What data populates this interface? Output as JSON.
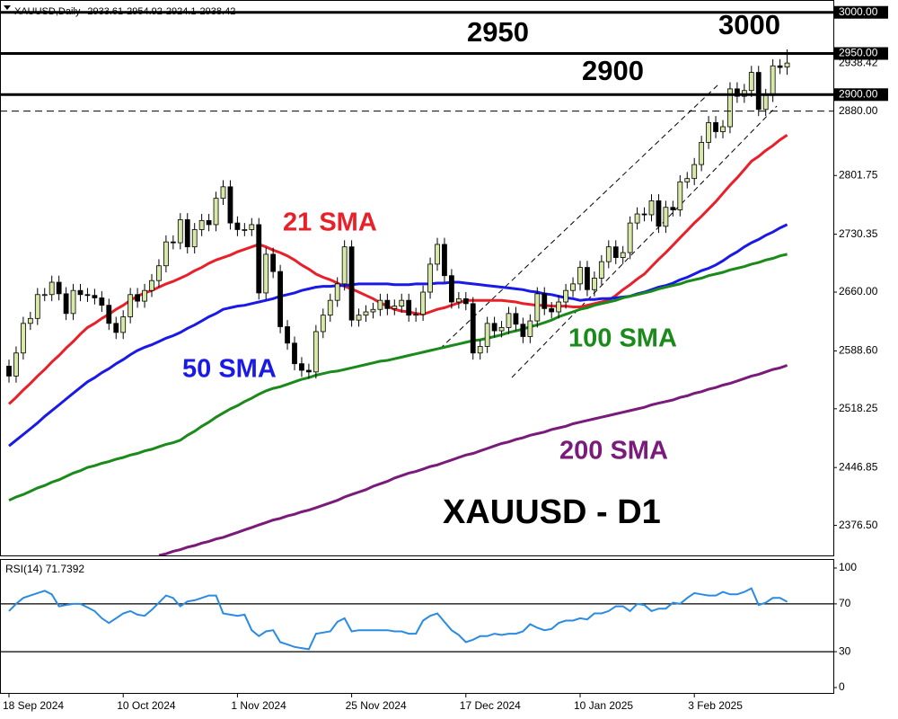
{
  "chart_data": {
    "type": "candlestick",
    "symbol": "XAUUSD,Daily",
    "annotation": "XAUUSD - D1",
    "categories": [
      "18 Sep 2024",
      null,
      null,
      null,
      null,
      null,
      null,
      null,
      null,
      null,
      null,
      null,
      null,
      null,
      null,
      null,
      "10 Oct 2024",
      null,
      null,
      null,
      null,
      null,
      null,
      null,
      null,
      null,
      null,
      null,
      null,
      null,
      null,
      null,
      "1 Nov 2024",
      null,
      null,
      null,
      null,
      null,
      null,
      null,
      null,
      null,
      null,
      null,
      null,
      null,
      null,
      null,
      "25 Nov 2024",
      null,
      null,
      null,
      null,
      null,
      null,
      null,
      null,
      null,
      null,
      null,
      null,
      null,
      null,
      null,
      "17 Dec 2024",
      null,
      null,
      null,
      null,
      null,
      null,
      null,
      null,
      null,
      null,
      null,
      null,
      null,
      null,
      null,
      "10 Jan 2025",
      null,
      null,
      null,
      null,
      null,
      null,
      null,
      null,
      null,
      null,
      null,
      null,
      null,
      null,
      null,
      "3 Feb 2025",
      null,
      null,
      null,
      null,
      null,
      null,
      null,
      null,
      null,
      null,
      null,
      null,
      null
    ],
    "open": [
      2570,
      2558,
      2586,
      2622,
      2628,
      2657,
      2657,
      2672,
      2658,
      2634,
      2662,
      2657,
      2656,
      2653,
      2644,
      2622,
      2611,
      2630,
      2657,
      2649,
      2662,
      2674,
      2692,
      2721,
      2720,
      2748,
      2715,
      2736,
      2747,
      2742,
      2774,
      2788,
      2744,
      2736,
      2736,
      2742,
      2659,
      2706,
      2685,
      2618,
      2598,
      2573,
      2565,
      2563,
      2612,
      2632,
      2650,
      2670,
      2715,
      2626,
      2632,
      2636,
      2639,
      2650,
      2640,
      2643,
      2650,
      2632,
      2633,
      2660,
      2694,
      2718,
      2680,
      2648,
      2652,
      2646,
      2586,
      2594,
      2622,
      2613,
      2617,
      2634,
      2621,
      2606,
      2625,
      2658,
      2640,
      2636,
      2648,
      2662,
      2670,
      2690,
      2663,
      2677,
      2697,
      2715,
      2702,
      2708,
      2744,
      2755,
      2754,
      2771,
      2740,
      2763,
      2760,
      2794,
      2798,
      2815,
      2842,
      2866,
      2855,
      2861,
      2907,
      2898,
      2905,
      2927,
      2882,
      2899,
      2935,
      2933.61
    ],
    "high": [
      2578,
      2594,
      2630,
      2636,
      2665,
      2665,
      2680,
      2680,
      2666,
      2670,
      2670,
      2665,
      2664,
      2661,
      2652,
      2630,
      2638,
      2665,
      2665,
      2670,
      2682,
      2700,
      2729,
      2729,
      2756,
      2756,
      2744,
      2755,
      2755,
      2782,
      2796,
      2796,
      2752,
      2744,
      2750,
      2750,
      2714,
      2714,
      2693,
      2626,
      2606,
      2581,
      2573,
      2620,
      2640,
      2658,
      2678,
      2723,
      2723,
      2640,
      2644,
      2647,
      2658,
      2658,
      2651,
      2658,
      2658,
      2641,
      2668,
      2702,
      2726,
      2726,
      2688,
      2660,
      2660,
      2654,
      2602,
      2630,
      2630,
      2625,
      2642,
      2642,
      2629,
      2633,
      2666,
      2666,
      2648,
      2656,
      2670,
      2678,
      2698,
      2698,
      2685,
      2705,
      2723,
      2723,
      2716,
      2752,
      2763,
      2763,
      2779,
      2779,
      2771,
      2771,
      2802,
      2806,
      2823,
      2850,
      2874,
      2874,
      2869,
      2915,
      2915,
      2913,
      2935,
      2935,
      2907,
      2943,
      2943,
      2954.92
    ],
    "low": [
      2550,
      2550,
      2578,
      2614,
      2620,
      2649,
      2649,
      2650,
      2626,
      2626,
      2649,
      2648,
      2645,
      2636,
      2614,
      2603,
      2603,
      2622,
      2641,
      2641,
      2654,
      2666,
      2684,
      2712,
      2712,
      2707,
      2707,
      2728,
      2734,
      2734,
      2766,
      2736,
      2728,
      2728,
      2728,
      2651,
      2651,
      2677,
      2610,
      2590,
      2565,
      2557,
      2555,
      2555,
      2604,
      2624,
      2642,
      2662,
      2618,
      2618,
      2624,
      2628,
      2631,
      2632,
      2632,
      2635,
      2624,
      2624,
      2625,
      2652,
      2686,
      2672,
      2640,
      2640,
      2638,
      2578,
      2578,
      2586,
      2605,
      2605,
      2609,
      2613,
      2598,
      2598,
      2617,
      2632,
      2628,
      2628,
      2640,
      2654,
      2662,
      2655,
      2655,
      2669,
      2689,
      2694,
      2694,
      2700,
      2736,
      2746,
      2746,
      2732,
      2732,
      2752,
      2752,
      2786,
      2790,
      2807,
      2834,
      2847,
      2847,
      2853,
      2890,
      2890,
      2897,
      2874,
      2874,
      2891,
      2925,
      2924.1
    ],
    "close": [
      2558,
      2586,
      2622,
      2628,
      2657,
      2657,
      2672,
      2658,
      2634,
      2662,
      2657,
      2656,
      2653,
      2644,
      2622,
      2611,
      2630,
      2657,
      2649,
      2662,
      2674,
      2692,
      2721,
      2720,
      2748,
      2715,
      2736,
      2747,
      2742,
      2774,
      2788,
      2744,
      2736,
      2736,
      2742,
      2659,
      2706,
      2685,
      2618,
      2598,
      2573,
      2565,
      2563,
      2612,
      2632,
      2650,
      2670,
      2715,
      2626,
      2632,
      2636,
      2639,
      2650,
      2640,
      2643,
      2650,
      2632,
      2633,
      2660,
      2694,
      2718,
      2680,
      2648,
      2652,
      2646,
      2586,
      2594,
      2622,
      2613,
      2617,
      2634,
      2621,
      2606,
      2625,
      2658,
      2640,
      2636,
      2648,
      2662,
      2670,
      2690,
      2663,
      2677,
      2697,
      2715,
      2702,
      2708,
      2744,
      2755,
      2754,
      2771,
      2740,
      2763,
      2760,
      2794,
      2798,
      2815,
      2842,
      2866,
      2855,
      2861,
      2907,
      2898,
      2905,
      2927,
      2882,
      2899,
      2935,
      2933,
      2938.42
    ],
    "up_color": "#d6e9a6",
    "down_color": "#000000",
    "ylim": [
      2340,
      3015
    ],
    "yticks": [
      {
        "value": 2376.5,
        "label": "2376.50"
      },
      {
        "value": 2446.85,
        "label": "2446.85"
      },
      {
        "value": 2518.25,
        "label": "2518.25"
      },
      {
        "value": 2588.6,
        "label": "2588.60"
      },
      {
        "value": 2660,
        "label": "2660.00"
      },
      {
        "value": 2730.35,
        "label": "2730.35"
      },
      {
        "value": 2801.75,
        "label": "2801.75"
      }
    ],
    "levels": [
      {
        "value": 3000,
        "label": "3000.00",
        "annotation": "3000",
        "style": "solid"
      },
      {
        "value": 2950,
        "label": "2950.00",
        "annotation": "2950",
        "style": "solid"
      },
      {
        "value": 2900,
        "label": "2900.00",
        "annotation": "2900",
        "style": "solid"
      },
      {
        "value": 2880,
        "label": "2880.00",
        "style": "dashed"
      }
    ],
    "series": [
      {
        "name": "21 SMA",
        "color": "#e8202a",
        "values": [
          2524,
          2532,
          2541,
          2549,
          2558,
          2566,
          2575,
          2583,
          2592,
          2600,
          2609,
          2617,
          2622,
          2628,
          2633,
          2639,
          2644,
          2650,
          2655,
          2659,
          2662,
          2666,
          2670,
          2673,
          2677,
          2681,
          2686,
          2690,
          2695,
          2699,
          2702,
          2705,
          2709,
          2712,
          2715,
          2718,
          2715,
          2711,
          2708,
          2704,
          2699,
          2693,
          2688,
          2682,
          2678,
          2675,
          2671,
          2667,
          2664,
          2660,
          2656,
          2652,
          2647,
          2643,
          2639,
          2637,
          2636,
          2634,
          2633,
          2636,
          2639,
          2641,
          2644,
          2647,
          2650,
          2650,
          2650,
          2650,
          2650,
          2650,
          2649,
          2648,
          2646,
          2645,
          2644,
          2644,
          2643,
          2643,
          2643,
          2642,
          2642,
          2644,
          2646,
          2648,
          2650,
          2656,
          2663,
          2669,
          2676,
          2682,
          2691,
          2700,
          2708,
          2717,
          2726,
          2735,
          2744,
          2752,
          2761,
          2770,
          2780,
          2790,
          2799,
          2809,
          2819,
          2825,
          2832,
          2838,
          2845,
          2851
        ]
      },
      {
        "name": "50 SMA",
        "color": "#1a1ae6",
        "values": [
          2473,
          2480,
          2487,
          2494,
          2501,
          2509,
          2516,
          2523,
          2530,
          2537,
          2544,
          2551,
          2556,
          2562,
          2567,
          2573,
          2578,
          2584,
          2589,
          2593,
          2596,
          2600,
          2604,
          2607,
          2611,
          2616,
          2620,
          2625,
          2630,
          2634,
          2639,
          2641,
          2643,
          2644,
          2646,
          2648,
          2650,
          2652,
          2655,
          2657,
          2659,
          2662,
          2664,
          2666,
          2667,
          2667,
          2668,
          2668,
          2669,
          2670,
          2670,
          2670,
          2670,
          2670,
          2669,
          2669,
          2669,
          2670,
          2670,
          2670,
          2671,
          2671,
          2672,
          2672,
          2671,
          2670,
          2669,
          2668,
          2667,
          2666,
          2665,
          2664,
          2663,
          2661,
          2660,
          2658,
          2657,
          2655,
          2653,
          2652,
          2650,
          2651,
          2651,
          2652,
          2652,
          2653,
          2654,
          2655,
          2658,
          2660,
          2663,
          2666,
          2668,
          2671,
          2675,
          2678,
          2682,
          2686,
          2689,
          2693,
          2698,
          2704,
          2709,
          2715,
          2720,
          2724,
          2729,
          2733,
          2738,
          2742
        ]
      },
      {
        "name": "100 SMA",
        "color": "#1a8a1a",
        "values": [
          2407,
          2411,
          2414,
          2418,
          2422,
          2425,
          2429,
          2432,
          2436,
          2440,
          2443,
          2447,
          2449,
          2452,
          2454,
          2457,
          2459,
          2462,
          2464,
          2467,
          2469,
          2472,
          2475,
          2477,
          2480,
          2486,
          2491,
          2497,
          2502,
          2508,
          2513,
          2518,
          2522,
          2527,
          2531,
          2536,
          2540,
          2543,
          2545,
          2548,
          2551,
          2554,
          2556,
          2559,
          2561,
          2563,
          2564,
          2566,
          2568,
          2570,
          2572,
          2574,
          2576,
          2577,
          2579,
          2581,
          2583,
          2585,
          2587,
          2589,
          2591,
          2593,
          2595,
          2597,
          2599,
          2601,
          2602,
          2604,
          2606,
          2608,
          2611,
          2613,
          2615,
          2618,
          2620,
          2623,
          2626,
          2630,
          2633,
          2636,
          2639,
          2641,
          2644,
          2646,
          2648,
          2650,
          2653,
          2655,
          2657,
          2659,
          2661,
          2664,
          2666,
          2668,
          2670,
          2673,
          2675,
          2677,
          2680,
          2682,
          2684,
          2687,
          2689,
          2691,
          2694,
          2696,
          2699,
          2701,
          2704,
          2706
        ]
      },
      {
        "name": "200 SMA",
        "color": "#7a1a7a",
        "values": [
          null,
          null,
          null,
          null,
          null,
          null,
          null,
          null,
          null,
          null,
          null,
          null,
          null,
          null,
          null,
          null,
          null,
          null,
          null,
          null,
          null,
          2340,
          2342,
          2345,
          2347,
          2350,
          2352,
          2355,
          2357,
          2360,
          2362,
          2365,
          2368,
          2371,
          2374,
          2377,
          2380,
          2383,
          2385,
          2388,
          2390,
          2393,
          2395,
          2398,
          2401,
          2404,
          2407,
          2411,
          2414,
          2417,
          2420,
          2424,
          2427,
          2430,
          2434,
          2437,
          2440,
          2442,
          2445,
          2448,
          2450,
          2453,
          2456,
          2459,
          2462,
          2464,
          2467,
          2470,
          2473,
          2476,
          2478,
          2481,
          2483,
          2486,
          2488,
          2490,
          2493,
          2495,
          2497,
          2500,
          2502,
          2504,
          2506,
          2508,
          2510,
          2512,
          2514,
          2516,
          2518,
          2520,
          2523,
          2525,
          2527,
          2529,
          2532,
          2534,
          2537,
          2539,
          2542,
          2544,
          2547,
          2549,
          2552,
          2555,
          2558,
          2560,
          2563,
          2566,
          2568,
          2571
        ]
      }
    ],
    "rsi": {
      "label": "RSI(14) 71.7392",
      "color": "#2a8be0",
      "ylim": [
        0,
        100
      ],
      "yticks": [
        0,
        30,
        70,
        100
      ],
      "levels": [
        30,
        70
      ],
      "values": [
        64,
        70,
        75,
        77,
        79,
        81,
        78,
        68,
        69,
        70,
        70,
        67,
        64,
        58,
        54,
        58,
        62,
        64,
        61,
        60,
        65,
        71,
        77,
        75,
        68,
        72,
        73,
        75,
        77,
        77,
        62,
        61,
        60,
        61,
        48,
        43,
        47,
        48,
        38,
        36,
        34,
        33,
        32,
        45,
        46,
        47,
        55,
        58,
        47,
        48,
        48,
        48,
        48,
        48,
        47,
        47,
        45,
        45,
        56,
        60,
        62,
        55,
        48,
        44,
        38,
        40,
        43,
        43,
        45,
        44,
        45,
        45,
        47,
        53,
        50,
        48,
        49,
        54,
        56,
        56,
        58,
        57,
        62,
        62,
        64,
        68,
        68,
        64,
        70,
        69,
        64,
        66,
        66,
        71,
        70,
        75,
        79,
        78,
        77,
        77,
        80,
        78,
        78,
        80,
        83,
        69,
        71,
        75,
        75,
        71.7392
      ]
    }
  }
}
